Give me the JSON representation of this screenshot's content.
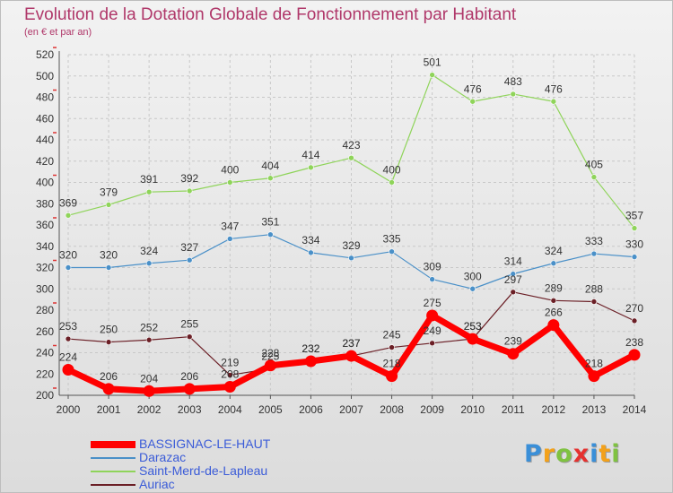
{
  "header": {
    "title": "Evolution de la Dotation Globale de Fonctionnement par Habitant",
    "subtitle": "(en € et par an)"
  },
  "logo": {
    "text": "Proxiti",
    "colors": [
      "#3a8fd8",
      "#f3a11a",
      "#7fc241",
      "#e5312f",
      "#3a8fd8",
      "#f3a11a",
      "#7fc241"
    ]
  },
  "chart_data": {
    "type": "line",
    "title": "Evolution de la Dotation Globale de Fonctionnement par Habitant",
    "subtitle": "(en € et par an)",
    "xlabel": "",
    "ylabel": "",
    "ylim": [
      200,
      520
    ],
    "ytick_step": 20,
    "grid": true,
    "legend_position": "bottom-left",
    "categories": [
      "2000",
      "2001",
      "2002",
      "2003",
      "2004",
      "2005",
      "2006",
      "2007",
      "2008",
      "2009",
      "2010",
      "2011",
      "2012",
      "2013",
      "2014"
    ],
    "series": [
      {
        "name": "Auriac",
        "color": "#6b1f26",
        "width": 1.2,
        "marker": 3,
        "values": [
          253,
          250,
          252,
          255,
          219,
          225,
          232,
          237,
          245,
          249,
          253,
          297,
          289,
          288,
          270
        ],
        "labels": [
          "253",
          "250",
          "252",
          "255",
          "219",
          "225",
          "232",
          "237",
          "245",
          "249",
          "253",
          "297",
          "289",
          "288",
          "270"
        ]
      },
      {
        "name": "Darazac",
        "color": "#4a90c8",
        "width": 1.2,
        "marker": 3,
        "values": [
          320,
          320,
          324,
          327,
          347,
          351,
          334,
          329,
          335,
          309,
          300,
          314,
          324,
          333,
          330
        ],
        "labels": [
          "320",
          "320",
          "324",
          "327",
          "347",
          "351",
          "334",
          "329",
          "335",
          "309",
          "300",
          "314",
          "324",
          "333",
          "330"
        ]
      },
      {
        "name": "Saint-Merd-de-Lapleau",
        "color": "#8fd45a",
        "width": 1.2,
        "marker": 3,
        "values": [
          369,
          379,
          391,
          392,
          400,
          404,
          414,
          423,
          400,
          501,
          476,
          483,
          476,
          405,
          357
        ],
        "labels": [
          "369",
          "379",
          "391",
          "392",
          "400",
          "404",
          "414",
          "423",
          "400",
          "501",
          "476",
          "483",
          "476",
          "405",
          "357"
        ]
      },
      {
        "name": "BASSIGNAC-LE-HAUT",
        "color": "#ff0000",
        "width": 7,
        "marker": 6.5,
        "values": [
          224,
          206,
          204,
          206,
          208,
          228,
          232,
          237,
          218,
          275,
          253,
          239,
          266,
          218,
          238
        ],
        "labels": [
          "224",
          "206",
          "204",
          "206",
          "208",
          "228",
          "232",
          "237",
          "218",
          "275",
          "253",
          "239",
          "266",
          "218",
          "238"
        ]
      }
    ],
    "legend": [
      {
        "name": "BASSIGNAC-LE-HAUT",
        "color": "#ff0000",
        "label_color": "#3a5bd8",
        "thickness": 8
      },
      {
        "name": "Darazac",
        "color": "#4a90c8",
        "label_color": "#3a5bd8",
        "thickness": 2
      },
      {
        "name": "Saint-Merd-de-Lapleau",
        "color": "#8fd45a",
        "label_color": "#3a5bd8",
        "thickness": 2
      },
      {
        "name": "Auriac",
        "color": "#6b1f26",
        "label_color": "#3a5bd8",
        "thickness": 2
      }
    ]
  }
}
